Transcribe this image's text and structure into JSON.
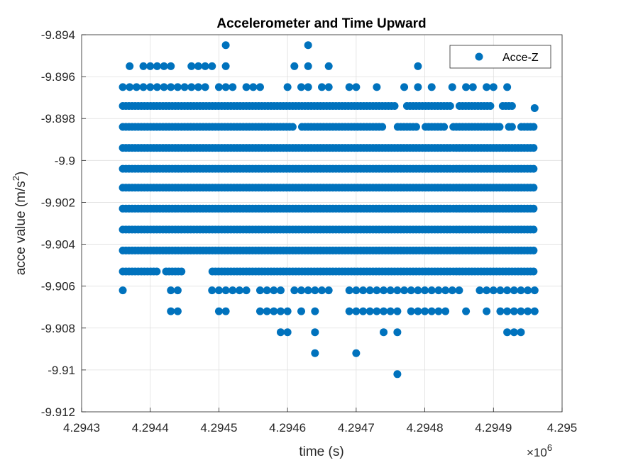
{
  "chart_data": {
    "type": "scatter",
    "title": "Accelerometer and Time Upward",
    "xlabel": "time (s)",
    "ylabel_main": "acce value (m/s",
    "ylabel_sup": "2",
    "ylabel_close": ")",
    "x_exponent_base": "×10",
    "x_exponent_power": "6",
    "xlim": [
      4.2943,
      4.295
    ],
    "ylim": [
      -9.912,
      -9.894
    ],
    "x_ticks": [
      4.2943,
      4.2944,
      4.2945,
      4.2946,
      4.2947,
      4.2948,
      4.2949,
      4.295
    ],
    "x_tick_labels": [
      "4.2943",
      "4.2944",
      "4.2945",
      "4.2946",
      "4.2947",
      "4.2948",
      "4.2949",
      "4.295"
    ],
    "y_ticks": [
      -9.912,
      -9.91,
      -9.908,
      -9.906,
      -9.904,
      -9.902,
      -9.9,
      -9.898,
      -9.896,
      -9.894
    ],
    "y_tick_labels": [
      "-9.912",
      "-9.91",
      "-9.908",
      "-9.906",
      "-9.904",
      "-9.902",
      "-9.9",
      "-9.898",
      "-9.896",
      "-9.894"
    ],
    "grid": true,
    "legend_position": "top-right",
    "series": [
      {
        "name": "Acce-Z",
        "color": "#0072BD",
        "marker": "circle",
        "continuous_bands": [
          {
            "y": -9.8984,
            "x_start": 4.29436,
            "x_end": 4.29496,
            "gaps": [
              [
                4.29461,
                4.29462
              ],
              [
                4.29474,
                4.29476
              ],
              [
                4.29479,
                4.2948
              ],
              [
                4.29483,
                4.29484
              ],
              [
                4.29491,
                4.29492
              ],
              [
                4.29493,
                4.29494
              ]
            ]
          },
          {
            "y": -9.8974,
            "x_start": 4.29436,
            "x_end": 4.29493,
            "gaps": [
              [
                4.29476,
                4.29477
              ],
              [
                4.29484,
                4.29485
              ],
              [
                4.2949,
                4.29491
              ]
            ]
          },
          {
            "y": -9.8994,
            "x_start": 4.29436,
            "x_end": 4.29496,
            "gaps": []
          },
          {
            "y": -9.9004,
            "x_start": 4.29436,
            "x_end": 4.29496,
            "gaps": []
          },
          {
            "y": -9.9013,
            "x_start": 4.29436,
            "x_end": 4.29496,
            "gaps": []
          },
          {
            "y": -9.9023,
            "x_start": 4.29436,
            "x_end": 4.29496,
            "gaps": []
          },
          {
            "y": -9.9033,
            "x_start": 4.29436,
            "x_end": 4.29496,
            "gaps": []
          },
          {
            "y": -9.9043,
            "x_start": 4.29436,
            "x_end": 4.29496,
            "gaps": []
          },
          {
            "y": -9.9053,
            "x_start": 4.29436,
            "x_end": 4.29496,
            "gaps": [
              [
                4.29441,
                4.29442
              ],
              [
                4.29445,
                4.29449
              ]
            ]
          }
        ],
        "sparse_points": [
          {
            "x": 4.29451,
            "y": -9.8945
          },
          {
            "x": 4.29463,
            "y": -9.8945
          },
          {
            "x": 4.29437,
            "y": -9.8955
          },
          {
            "x": 4.29439,
            "y": -9.8955
          },
          {
            "x": 4.2944,
            "y": -9.8955
          },
          {
            "x": 4.29441,
            "y": -9.8955
          },
          {
            "x": 4.29442,
            "y": -9.8955
          },
          {
            "x": 4.29443,
            "y": -9.8955
          },
          {
            "x": 4.29446,
            "y": -9.8955
          },
          {
            "x": 4.29447,
            "y": -9.8955
          },
          {
            "x": 4.29448,
            "y": -9.8955
          },
          {
            "x": 4.29449,
            "y": -9.8955
          },
          {
            "x": 4.29451,
            "y": -9.8955
          },
          {
            "x": 4.29461,
            "y": -9.8955
          },
          {
            "x": 4.29463,
            "y": -9.8955
          },
          {
            "x": 4.29466,
            "y": -9.8955
          },
          {
            "x": 4.29479,
            "y": -9.8955
          },
          {
            "x": 4.29436,
            "y": -9.8965
          },
          {
            "x": 4.29437,
            "y": -9.8965
          },
          {
            "x": 4.29438,
            "y": -9.8965
          },
          {
            "x": 4.29439,
            "y": -9.8965
          },
          {
            "x": 4.2944,
            "y": -9.8965
          },
          {
            "x": 4.29441,
            "y": -9.8965
          },
          {
            "x": 4.29442,
            "y": -9.8965
          },
          {
            "x": 4.29443,
            "y": -9.8965
          },
          {
            "x": 4.29444,
            "y": -9.8965
          },
          {
            "x": 4.29445,
            "y": -9.8965
          },
          {
            "x": 4.29446,
            "y": -9.8965
          },
          {
            "x": 4.29447,
            "y": -9.8965
          },
          {
            "x": 4.29448,
            "y": -9.8965
          },
          {
            "x": 4.2945,
            "y": -9.8965
          },
          {
            "x": 4.29451,
            "y": -9.8965
          },
          {
            "x": 4.29452,
            "y": -9.8965
          },
          {
            "x": 4.29454,
            "y": -9.8965
          },
          {
            "x": 4.29455,
            "y": -9.8965
          },
          {
            "x": 4.29456,
            "y": -9.8965
          },
          {
            "x": 4.2946,
            "y": -9.8965
          },
          {
            "x": 4.29462,
            "y": -9.8965
          },
          {
            "x": 4.29463,
            "y": -9.8965
          },
          {
            "x": 4.29465,
            "y": -9.8965
          },
          {
            "x": 4.29466,
            "y": -9.8965
          },
          {
            "x": 4.29469,
            "y": -9.8965
          },
          {
            "x": 4.2947,
            "y": -9.8965
          },
          {
            "x": 4.29473,
            "y": -9.8965
          },
          {
            "x": 4.29477,
            "y": -9.8965
          },
          {
            "x": 4.29479,
            "y": -9.8965
          },
          {
            "x": 4.29481,
            "y": -9.8965
          },
          {
            "x": 4.29484,
            "y": -9.8965
          },
          {
            "x": 4.29486,
            "y": -9.8965
          },
          {
            "x": 4.29487,
            "y": -9.8965
          },
          {
            "x": 4.29489,
            "y": -9.8965
          },
          {
            "x": 4.2949,
            "y": -9.8965
          },
          {
            "x": 4.29492,
            "y": -9.8965
          },
          {
            "x": 4.29496,
            "y": -9.8975
          },
          {
            "x": 4.29436,
            "y": -9.9062
          },
          {
            "x": 4.29443,
            "y": -9.9062
          },
          {
            "x": 4.29444,
            "y": -9.9062
          },
          {
            "x": 4.29449,
            "y": -9.9062
          },
          {
            "x": 4.2945,
            "y": -9.9062
          },
          {
            "x": 4.29451,
            "y": -9.9062
          },
          {
            "x": 4.29452,
            "y": -9.9062
          },
          {
            "x": 4.29453,
            "y": -9.9062
          },
          {
            "x": 4.29454,
            "y": -9.9062
          },
          {
            "x": 4.29456,
            "y": -9.9062
          },
          {
            "x": 4.29457,
            "y": -9.9062
          },
          {
            "x": 4.29458,
            "y": -9.9062
          },
          {
            "x": 4.29459,
            "y": -9.9062
          },
          {
            "x": 4.29461,
            "y": -9.9062
          },
          {
            "x": 4.29462,
            "y": -9.9062
          },
          {
            "x": 4.29463,
            "y": -9.9062
          },
          {
            "x": 4.29464,
            "y": -9.9062
          },
          {
            "x": 4.29465,
            "y": -9.9062
          },
          {
            "x": 4.29466,
            "y": -9.9062
          },
          {
            "x": 4.29469,
            "y": -9.9062
          },
          {
            "x": 4.2947,
            "y": -9.9062
          },
          {
            "x": 4.29471,
            "y": -9.9062
          },
          {
            "x": 4.29472,
            "y": -9.9062
          },
          {
            "x": 4.29473,
            "y": -9.9062
          },
          {
            "x": 4.29474,
            "y": -9.9062
          },
          {
            "x": 4.29475,
            "y": -9.9062
          },
          {
            "x": 4.29476,
            "y": -9.9062
          },
          {
            "x": 4.29477,
            "y": -9.9062
          },
          {
            "x": 4.29478,
            "y": -9.9062
          },
          {
            "x": 4.29479,
            "y": -9.9062
          },
          {
            "x": 4.2948,
            "y": -9.9062
          },
          {
            "x": 4.29481,
            "y": -9.9062
          },
          {
            "x": 4.29482,
            "y": -9.9062
          },
          {
            "x": 4.29483,
            "y": -9.9062
          },
          {
            "x": 4.29484,
            "y": -9.9062
          },
          {
            "x": 4.29485,
            "y": -9.9062
          },
          {
            "x": 4.29488,
            "y": -9.9062
          },
          {
            "x": 4.29489,
            "y": -9.9062
          },
          {
            "x": 4.2949,
            "y": -9.9062
          },
          {
            "x": 4.29491,
            "y": -9.9062
          },
          {
            "x": 4.29492,
            "y": -9.9062
          },
          {
            "x": 4.29493,
            "y": -9.9062
          },
          {
            "x": 4.29494,
            "y": -9.9062
          },
          {
            "x": 4.29495,
            "y": -9.9062
          },
          {
            "x": 4.29496,
            "y": -9.9062
          },
          {
            "x": 4.29443,
            "y": -9.9072
          },
          {
            "x": 4.29444,
            "y": -9.9072
          },
          {
            "x": 4.2945,
            "y": -9.9072
          },
          {
            "x": 4.29451,
            "y": -9.9072
          },
          {
            "x": 4.29456,
            "y": -9.9072
          },
          {
            "x": 4.29457,
            "y": -9.9072
          },
          {
            "x": 4.29458,
            "y": -9.9072
          },
          {
            "x": 4.29459,
            "y": -9.9072
          },
          {
            "x": 4.2946,
            "y": -9.9072
          },
          {
            "x": 4.29462,
            "y": -9.9072
          },
          {
            "x": 4.29464,
            "y": -9.9072
          },
          {
            "x": 4.29469,
            "y": -9.9072
          },
          {
            "x": 4.2947,
            "y": -9.9072
          },
          {
            "x": 4.29471,
            "y": -9.9072
          },
          {
            "x": 4.29472,
            "y": -9.9072
          },
          {
            "x": 4.29473,
            "y": -9.9072
          },
          {
            "x": 4.29474,
            "y": -9.9072
          },
          {
            "x": 4.29475,
            "y": -9.9072
          },
          {
            "x": 4.29476,
            "y": -9.9072
          },
          {
            "x": 4.29478,
            "y": -9.9072
          },
          {
            "x": 4.29479,
            "y": -9.9072
          },
          {
            "x": 4.2948,
            "y": -9.9072
          },
          {
            "x": 4.29481,
            "y": -9.9072
          },
          {
            "x": 4.29482,
            "y": -9.9072
          },
          {
            "x": 4.29483,
            "y": -9.9072
          },
          {
            "x": 4.29486,
            "y": -9.9072
          },
          {
            "x": 4.29489,
            "y": -9.9072
          },
          {
            "x": 4.29491,
            "y": -9.9072
          },
          {
            "x": 4.29492,
            "y": -9.9072
          },
          {
            "x": 4.29493,
            "y": -9.9072
          },
          {
            "x": 4.29494,
            "y": -9.9072
          },
          {
            "x": 4.29495,
            "y": -9.9072
          },
          {
            "x": 4.29496,
            "y": -9.9072
          },
          {
            "x": 4.29459,
            "y": -9.9082
          },
          {
            "x": 4.2946,
            "y": -9.9082
          },
          {
            "x": 4.29464,
            "y": -9.9082
          },
          {
            "x": 4.29474,
            "y": -9.9082
          },
          {
            "x": 4.29476,
            "y": -9.9082
          },
          {
            "x": 4.29492,
            "y": -9.9082
          },
          {
            "x": 4.29493,
            "y": -9.9082
          },
          {
            "x": 4.29494,
            "y": -9.9082
          },
          {
            "x": 4.29464,
            "y": -9.9092
          },
          {
            "x": 4.2947,
            "y": -9.9092
          },
          {
            "x": 4.29476,
            "y": -9.9102
          }
        ]
      }
    ]
  }
}
